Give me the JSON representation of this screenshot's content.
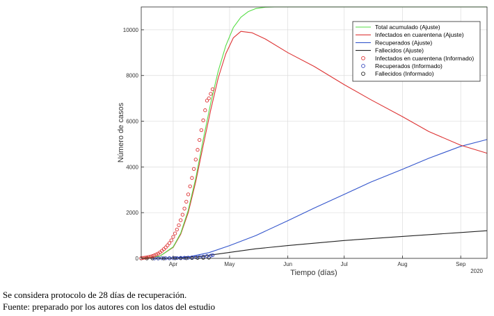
{
  "chart_data": {
    "type": "line",
    "xlabel": "Tiempo (días)",
    "ylabel": "Número de casos",
    "year_label": "2020",
    "xlim": [
      "2020-03-15",
      "2020-09-15"
    ],
    "ylim": [
      0,
      11000
    ],
    "x_ticks": [
      {
        "date": "2020-04-01",
        "label": "Apr"
      },
      {
        "date": "2020-05-01",
        "label": "May"
      },
      {
        "date": "2020-06-01",
        "label": "Jun"
      },
      {
        "date": "2020-07-01",
        "label": "Jul"
      },
      {
        "date": "2020-08-01",
        "label": "Aug"
      },
      {
        "date": "2020-09-01",
        "label": "Sep"
      }
    ],
    "y_ticks": [
      0,
      2000,
      4000,
      6000,
      8000,
      10000
    ],
    "grid": true,
    "legend_position": "top-right",
    "series": [
      {
        "name": "Total acumulado (Ajuste)",
        "style": "line",
        "color": "#55dd44",
        "x": [
          "2020-03-15",
          "2020-03-25",
          "2020-04-01",
          "2020-04-05",
          "2020-04-09",
          "2020-04-13",
          "2020-04-17",
          "2020-04-21",
          "2020-04-25",
          "2020-04-29",
          "2020-05-03",
          "2020-05-07",
          "2020-05-11",
          "2020-05-15",
          "2020-05-20",
          "2020-05-25",
          "2020-06-01",
          "2020-07-01",
          "2020-08-01",
          "2020-09-01",
          "2020-09-15"
        ],
        "y": [
          0,
          100,
          500,
          1100,
          2100,
          3500,
          5200,
          6800,
          8200,
          9300,
          10100,
          10550,
          10800,
          10930,
          10990,
          11000,
          11000,
          11000,
          11000,
          11000,
          11000
        ]
      },
      {
        "name": "Infectados en cuarentena (Ajuste)",
        "style": "line",
        "color": "#dd3333",
        "x": [
          "2020-03-15",
          "2020-03-25",
          "2020-04-01",
          "2020-04-05",
          "2020-04-09",
          "2020-04-13",
          "2020-04-17",
          "2020-04-21",
          "2020-04-25",
          "2020-04-29",
          "2020-05-03",
          "2020-05-07",
          "2020-05-13",
          "2020-05-20",
          "2020-06-01",
          "2020-06-15",
          "2020-07-01",
          "2020-07-15",
          "2020-08-01",
          "2020-08-15",
          "2020-09-01",
          "2020-09-15"
        ],
        "y": [
          0,
          100,
          480,
          1050,
          2000,
          3350,
          4950,
          6500,
          7900,
          8950,
          9650,
          9930,
          9870,
          9600,
          9000,
          8400,
          7600,
          6950,
          6200,
          5550,
          4950,
          4600
        ]
      },
      {
        "name": "Recuperados (Ajuste)",
        "style": "line",
        "color": "#3355cc",
        "x": [
          "2020-03-15",
          "2020-04-01",
          "2020-04-10",
          "2020-04-20",
          "2020-05-01",
          "2020-05-15",
          "2020-06-01",
          "2020-06-15",
          "2020-07-01",
          "2020-07-15",
          "2020-08-01",
          "2020-08-15",
          "2020-09-01",
          "2020-09-15"
        ],
        "y": [
          0,
          20,
          80,
          250,
          560,
          1000,
          1650,
          2200,
          2800,
          3330,
          3900,
          4380,
          4900,
          5200
        ]
      },
      {
        "name": "Fallecidos (Ajuste)",
        "style": "line",
        "color": "#222222",
        "x": [
          "2020-03-15",
          "2020-04-01",
          "2020-04-15",
          "2020-05-01",
          "2020-05-15",
          "2020-06-01",
          "2020-07-01",
          "2020-08-01",
          "2020-09-01",
          "2020-09-15"
        ],
        "y": [
          0,
          10,
          80,
          260,
          420,
          560,
          780,
          960,
          1130,
          1210
        ]
      },
      {
        "name": "Infectados en cuarentena (Informado)",
        "style": "markers",
        "color": "#dd3333",
        "x": [
          "2020-03-15",
          "2020-03-16",
          "2020-03-17",
          "2020-03-18",
          "2020-03-19",
          "2020-03-20",
          "2020-03-21",
          "2020-03-22",
          "2020-03-23",
          "2020-03-24",
          "2020-03-25",
          "2020-03-26",
          "2020-03-27",
          "2020-03-28",
          "2020-03-29",
          "2020-03-30",
          "2020-03-31",
          "2020-04-01",
          "2020-04-02",
          "2020-04-03",
          "2020-04-04",
          "2020-04-05",
          "2020-04-06",
          "2020-04-07",
          "2020-04-08",
          "2020-04-09",
          "2020-04-10",
          "2020-04-11",
          "2020-04-12",
          "2020-04-13",
          "2020-04-14",
          "2020-04-15",
          "2020-04-16",
          "2020-04-17",
          "2020-04-18",
          "2020-04-19",
          "2020-04-20",
          "2020-04-21",
          "2020-04-22"
        ],
        "y": [
          10,
          20,
          30,
          45,
          60,
          80,
          100,
          130,
          170,
          210,
          260,
          330,
          400,
          480,
          570,
          670,
          790,
          940,
          1090,
          1260,
          1450,
          1670,
          1910,
          2180,
          2480,
          2800,
          3150,
          3520,
          3910,
          4320,
          4750,
          5180,
          5610,
          6040,
          6480,
          6900,
          7000,
          7200,
          7400
        ]
      },
      {
        "name": "Recuperados (Informado)",
        "style": "markers",
        "color": "#3344bb",
        "x": [
          "2020-03-22",
          "2020-03-24",
          "2020-03-26",
          "2020-03-28",
          "2020-03-30",
          "2020-04-01",
          "2020-04-03",
          "2020-04-05",
          "2020-04-07",
          "2020-04-09",
          "2020-04-11",
          "2020-04-13",
          "2020-04-15",
          "2020-04-17",
          "2020-04-19",
          "2020-04-21",
          "2020-04-22"
        ],
        "y": [
          0,
          0,
          5,
          5,
          10,
          10,
          15,
          20,
          25,
          30,
          40,
          50,
          60,
          80,
          100,
          120,
          140
        ]
      },
      {
        "name": "Fallecidos  (Informado)",
        "style": "markers",
        "color": "#222222",
        "x": [
          "2020-03-15",
          "2020-03-18",
          "2020-03-21",
          "2020-03-24",
          "2020-03-27",
          "2020-03-30",
          "2020-04-02",
          "2020-04-05",
          "2020-04-08",
          "2020-04-11",
          "2020-04-14",
          "2020-04-17",
          "2020-04-20"
        ],
        "y": [
          0,
          0,
          0,
          0,
          0,
          5,
          5,
          10,
          10,
          15,
          20,
          25,
          30
        ]
      }
    ]
  },
  "caption": {
    "line1": "Se considera protocolo de 28 días de recuperación.",
    "line2": "Fuente: preparado por los autores con los datos del estudio"
  }
}
